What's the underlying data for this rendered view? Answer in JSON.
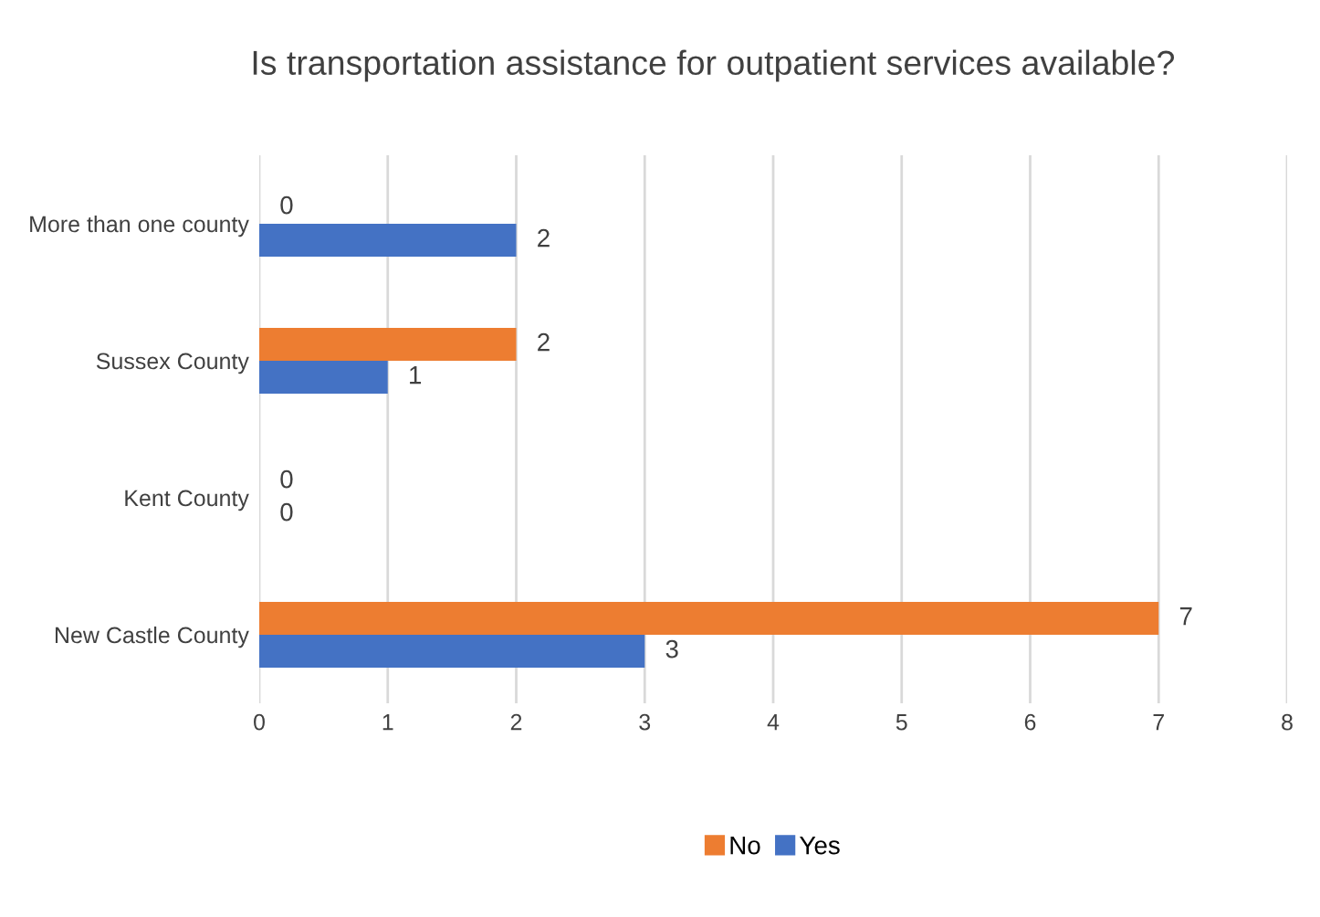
{
  "chart_data": {
    "type": "bar",
    "orientation": "horizontal",
    "title": "Is transportation assistance for outpatient services available?",
    "categories": [
      "More than one county",
      "Sussex County",
      "Kent County",
      "New Castle County"
    ],
    "series": [
      {
        "name": "No",
        "color": "#ed7d31",
        "values": [
          0,
          2,
          0,
          7
        ]
      },
      {
        "name": "Yes",
        "color": "#4472c4",
        "values": [
          2,
          1,
          0,
          3
        ]
      }
    ],
    "xlim": [
      0,
      8
    ],
    "xticks": [
      0,
      1,
      2,
      3,
      4,
      5,
      6,
      7,
      8
    ],
    "grid": "x",
    "legend": "bottom",
    "data_labels": true
  }
}
